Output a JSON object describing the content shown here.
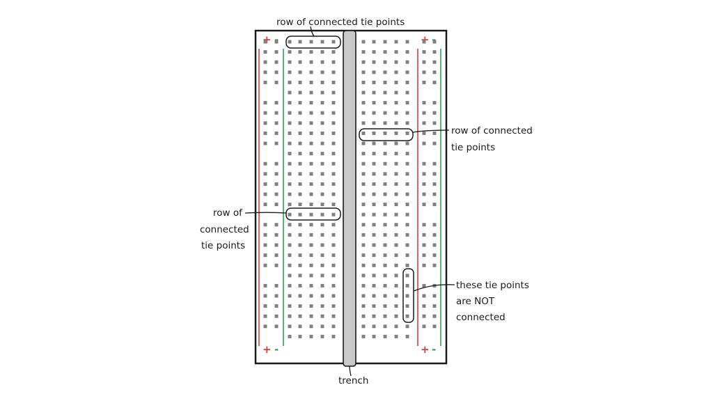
{
  "diagram": {
    "labels": {
      "top": "row of connected tie points",
      "right_row": [
        "row of connected",
        "tie points"
      ],
      "left_row": [
        "row of",
        "connected",
        "tie points"
      ],
      "not_connected": [
        "these tie points",
        "are NOT",
        "connected"
      ],
      "trench": "trench"
    },
    "rail_symbols": {
      "plus": "+",
      "minus": "-"
    },
    "colors": {
      "outline": "#1a1a1a",
      "hole": "#808080",
      "plus_rail": "#e03a3a",
      "minus_rail": "#2f9e5a",
      "trench_fill": "#c9c9c9"
    },
    "breadboard": {
      "rows": 30,
      "columns_per_side": 5,
      "rail_columns_per_side": 2
    }
  }
}
